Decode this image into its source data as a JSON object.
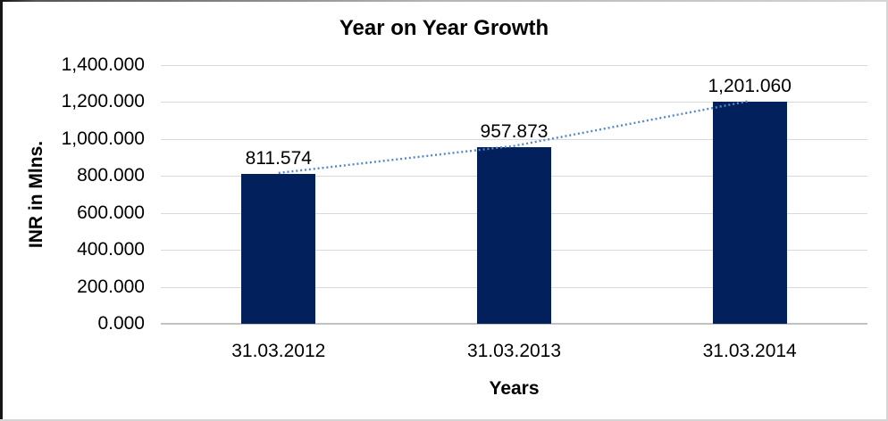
{
  "chart_data": {
    "type": "bar",
    "title": "Year on Year Growth",
    "xlabel": "Years",
    "ylabel": "INR in Mlns.",
    "categories": [
      "31.03.2012",
      "31.03.2013",
      "31.03.2014"
    ],
    "values": [
      811.574,
      957.873,
      1201.06
    ],
    "value_labels": [
      "811.574",
      "957.873",
      "1,201.060"
    ],
    "ylim": [
      0,
      1400
    ],
    "ytick_values": [
      0,
      200,
      400,
      600,
      800,
      1000,
      1200,
      1400
    ],
    "ytick_labels": [
      "0.000",
      "200.000",
      "400.000",
      "600.000",
      "800.000",
      "1,000.000",
      "1,200.000",
      "1,400.000"
    ],
    "grid": true,
    "legend": "none",
    "trend_line": {
      "style": "dotted",
      "values": [
        811.574,
        957.873,
        1201.06
      ],
      "color": "#5588CB"
    },
    "colors": {
      "bar": "#02215C",
      "gridline": "#D9D9D9",
      "axis_line": "#C2C2C2",
      "text": "#000000"
    }
  }
}
